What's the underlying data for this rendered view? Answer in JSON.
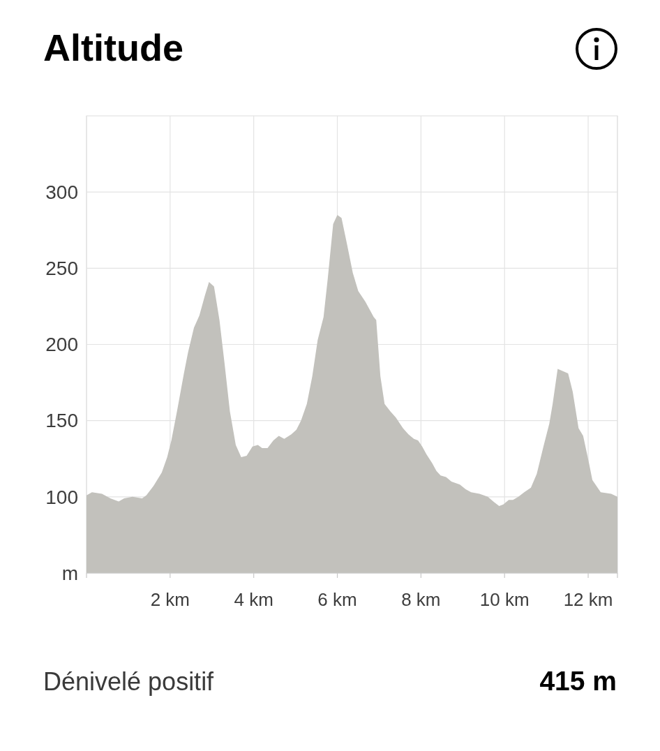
{
  "chart_data": {
    "type": "area",
    "title": "Altitude",
    "x": [
      0,
      0.13,
      0.37,
      0.57,
      0.77,
      0.9,
      1.1,
      1.33,
      1.43,
      1.6,
      1.8,
      1.93,
      2.03,
      2.17,
      2.33,
      2.43,
      2.57,
      2.7,
      2.83,
      2.93,
      3.05,
      3.18,
      3.3,
      3.43,
      3.57,
      3.7,
      3.83,
      3.97,
      4.1,
      4.2,
      4.33,
      4.47,
      4.6,
      4.73,
      4.9,
      5.02,
      5.13,
      5.27,
      5.4,
      5.53,
      5.67,
      5.77,
      5.9,
      6.0,
      6.1,
      6.23,
      6.37,
      6.5,
      6.67,
      6.87,
      6.93,
      7.03,
      7.13,
      7.27,
      7.4,
      7.57,
      7.7,
      7.83,
      7.93,
      8.03,
      8.13,
      8.27,
      8.37,
      8.47,
      8.6,
      8.73,
      8.93,
      9.07,
      9.2,
      9.4,
      9.6,
      9.73,
      9.87,
      9.97,
      10.1,
      10.2,
      10.33,
      10.47,
      10.63,
      10.77,
      10.93,
      11.07,
      11.15,
      11.27,
      11.52,
      11.63,
      11.77,
      11.88,
      12.02,
      12.1,
      12.3,
      12.55,
      12.7
    ],
    "values": [
      101,
      103,
      102,
      99,
      97,
      99,
      100,
      99,
      101,
      107,
      116,
      126,
      137,
      157,
      181,
      195,
      211,
      219,
      232,
      241,
      238,
      216,
      188,
      156,
      134,
      126,
      127,
      133,
      134,
      132,
      132,
      137,
      140,
      138,
      141,
      144,
      150,
      161,
      179,
      203,
      218,
      243,
      279,
      285,
      283,
      266,
      247,
      235,
      228,
      218,
      216,
      179,
      161,
      156,
      152,
      145,
      141,
      138,
      137,
      133,
      128,
      122,
      117,
      114,
      113,
      110,
      108,
      105,
      103,
      102,
      100,
      97,
      94,
      95,
      98,
      98,
      100,
      103,
      106,
      115,
      133,
      148,
      161,
      184,
      181,
      169,
      145,
      140,
      122,
      111,
      103,
      102,
      100
    ],
    "color": "#c2c1bc",
    "xlim": [
      0,
      12.7
    ],
    "xticks": [
      {
        "value": 0,
        "label": null
      },
      {
        "value": 2,
        "label": "2 km"
      },
      {
        "value": 4,
        "label": "4 km"
      },
      {
        "value": 6,
        "label": "6 km"
      },
      {
        "value": 8,
        "label": "8 km"
      },
      {
        "value": 10,
        "label": "10 km"
      },
      {
        "value": 12,
        "label": "12 km"
      },
      {
        "value": 12.7,
        "label": null
      }
    ],
    "ylim": [
      50,
      350
    ],
    "yticks": [
      {
        "value": 50,
        "label": "m"
      },
      100,
      150,
      200,
      250,
      300
    ],
    "grid": true,
    "annotations": [
      "Dénivelé positif",
      "415 m"
    ]
  }
}
